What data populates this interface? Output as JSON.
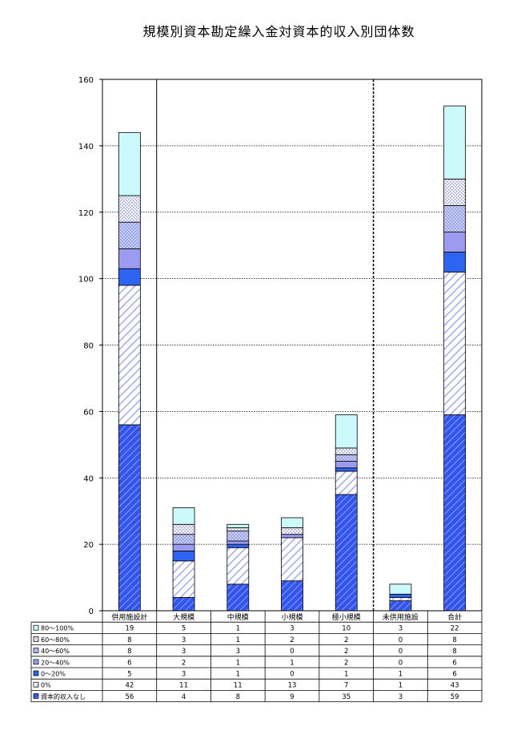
{
  "chart_data": {
    "type": "bar",
    "stacked": true,
    "title": "規模別資本勘定繰入金対資本的収入別団体数",
    "xlabel": "",
    "ylabel": "",
    "ylim": [
      0,
      160
    ],
    "yticks": [
      0,
      20,
      40,
      60,
      80,
      100,
      120,
      140,
      160
    ],
    "grid": true,
    "legend": "bottom-table",
    "categories": [
      "供用施設計",
      "大規模",
      "中規模",
      "小規模",
      "極小規模",
      "未供用施設",
      "合計"
    ],
    "series": [
      {
        "name": "資本的収入なし",
        "values": [
          56,
          4,
          8,
          9,
          35,
          3,
          59
        ],
        "color": "#3355ee",
        "pattern": "dense-hatch"
      },
      {
        "name": "0%",
        "values": [
          42,
          11,
          11,
          13,
          7,
          1,
          43
        ],
        "color": "#aab0ee",
        "pattern": "hatch"
      },
      {
        "name": "0～20%",
        "values": [
          5,
          3,
          1,
          0,
          1,
          1,
          6
        ],
        "color": "#2f63f2",
        "pattern": "solid"
      },
      {
        "name": "20～40%",
        "values": [
          6,
          2,
          1,
          1,
          2,
          0,
          6
        ],
        "color": "#9b9cf0",
        "pattern": "solid"
      },
      {
        "name": "40～60%",
        "values": [
          8,
          3,
          3,
          0,
          2,
          0,
          8
        ],
        "color": "#c8cdf2",
        "pattern": "grid"
      },
      {
        "name": "60～80%",
        "values": [
          8,
          3,
          1,
          2,
          2,
          0,
          8
        ],
        "color": "#dde0f2",
        "pattern": "dots"
      },
      {
        "name": "80～100%",
        "values": [
          19,
          5,
          1,
          3,
          10,
          3,
          22
        ],
        "color": "#ccfafa",
        "pattern": "solid"
      }
    ]
  }
}
